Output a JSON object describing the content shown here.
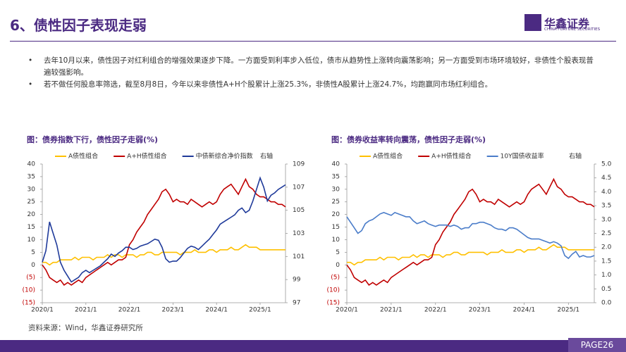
{
  "header": {
    "title": "6、债性因子表现走弱",
    "logo": "华鑫证券",
    "logo_sub": "CHINA FORTUNE SECURITIES"
  },
  "bullets": [
    "去年10月以来，债性因子对红利组合的增强效果逐步下降。一方面受到利率步入低位，债市从趋势性上涨转向震荡影响；另一方面受到市场环境较好，非债性个股表现普遍较强影响。",
    "若不做任何股息率筛选，截至8月8日，今年以来非债性A+H个股累计上涨25.3%，非债性A股累计上涨24.7%，均跑赢同市场红利组合。"
  ],
  "source": "资料来源：Wind，华鑫证券研究所",
  "footer": "PAGE26",
  "chart_data": [
    {
      "type": "line",
      "title": "图：债券指数下行，债性因子走弱(%)",
      "y2_label": "右轴",
      "x": [
        "2020/1",
        "2020/2",
        "2020/3",
        "2020/4",
        "2020/5",
        "2020/6",
        "2020/7",
        "2020/8",
        "2020/9",
        "2020/10",
        "2020/11",
        "2020/12",
        "2021/1",
        "2021/2",
        "2021/3",
        "2021/4",
        "2021/5",
        "2021/6",
        "2021/7",
        "2021/8",
        "2021/9",
        "2021/10",
        "2021/11",
        "2021/12",
        "2022/1",
        "2022/2",
        "2022/3",
        "2022/4",
        "2022/5",
        "2022/6",
        "2022/7",
        "2022/8",
        "2022/9",
        "2022/10",
        "2022/11",
        "2022/12",
        "2023/1",
        "2023/2",
        "2023/3",
        "2023/4",
        "2023/5",
        "2023/6",
        "2023/7",
        "2023/8",
        "2023/9",
        "2023/10",
        "2023/11",
        "2023/12",
        "2024/1",
        "2024/2",
        "2024/3",
        "2024/4",
        "2024/5",
        "2024/6",
        "2024/7",
        "2024/8",
        "2024/9",
        "2024/10",
        "2024/11",
        "2024/12",
        "2025/1",
        "2025/2",
        "2025/3",
        "2025/4",
        "2025/5",
        "2025/6",
        "2025/7",
        "2025/8"
      ],
      "xticks": [
        "2020/1",
        "2021/1",
        "2022/1",
        "2023/1",
        "2024/1",
        "2025/1"
      ],
      "ylim": [
        -15,
        40
      ],
      "yticks": [
        {
          "value": -15,
          "label": "(15)"
        },
        {
          "value": -10,
          "label": "(10)"
        },
        {
          "value": -5,
          "label": "(5)"
        },
        0,
        5,
        10,
        15,
        20,
        25,
        30,
        35,
        40
      ],
      "y2lim": [
        97,
        109
      ],
      "y2ticks": [
        97,
        99,
        101,
        103,
        105,
        107,
        109
      ],
      "series": [
        {
          "name": "A债性组合",
          "color": "#ffc000",
          "values": [
            1,
            1,
            0,
            1,
            1,
            2,
            2,
            2,
            2,
            3,
            2,
            3,
            3,
            3,
            2,
            3,
            3,
            3,
            4,
            3,
            4,
            4,
            3,
            4,
            4,
            4,
            3,
            4,
            4,
            5,
            5,
            4,
            4,
            5,
            5,
            5,
            5,
            5,
            4,
            5,
            5,
            5,
            6,
            5,
            5,
            5,
            6,
            6,
            5,
            6,
            6,
            6,
            7,
            6,
            6,
            7,
            8,
            7,
            7,
            7,
            6,
            6,
            6,
            6,
            6,
            6,
            6,
            6
          ]
        },
        {
          "name": "A+H债性组合",
          "color": "#c00000",
          "values": [
            0,
            -2,
            -5,
            -6,
            -7,
            -6,
            -8,
            -7,
            -8,
            -7,
            -6,
            -7,
            -5,
            -4,
            -3,
            -2,
            -1,
            0,
            1,
            0,
            1,
            2,
            2,
            3,
            8,
            10,
            13,
            15,
            17,
            20,
            22,
            24,
            26,
            29,
            30,
            28,
            25,
            26,
            25,
            25,
            24,
            26,
            25,
            24,
            23,
            24,
            25,
            24,
            25,
            28,
            30,
            31,
            32,
            30,
            28,
            31,
            34,
            31,
            30,
            28,
            27,
            27,
            26,
            25,
            25,
            24,
            24,
            23
          ]
        },
        {
          "name": "中债新综合净价指数",
          "color": "#1f3a9a",
          "axis": "y2",
          "values": [
            100.5,
            101.5,
            104,
            103,
            102,
            100.5,
            99.8,
            99.3,
            98.8,
            99,
            99.2,
            99.6,
            99.8,
            99.6,
            99.8,
            100,
            100.2,
            100.5,
            100.8,
            101.2,
            101,
            101.3,
            101.5,
            101.8,
            101.8,
            101.6,
            101.7,
            101.9,
            102,
            102.1,
            102.3,
            102.5,
            102.4,
            101.8,
            100.8,
            100.5,
            100.6,
            100.6,
            100.9,
            101.3,
            101.7,
            101.9,
            101.8,
            101.6,
            101.9,
            102.2,
            102.5,
            102.9,
            103.3,
            103.8,
            104,
            104.2,
            104.4,
            104.6,
            105,
            105.2,
            104.8,
            105,
            105.8,
            106.8,
            107.8,
            107,
            105.8,
            106.3,
            106.5,
            106.8,
            107,
            107.2
          ]
        }
      ]
    },
    {
      "type": "line",
      "title": "图：债券收益率转向震荡，债性因子走弱(%)",
      "y2_label": "右轴",
      "x": [
        "2020/1",
        "2020/2",
        "2020/3",
        "2020/4",
        "2020/5",
        "2020/6",
        "2020/7",
        "2020/8",
        "2020/9",
        "2020/10",
        "2020/11",
        "2020/12",
        "2021/1",
        "2021/2",
        "2021/3",
        "2021/4",
        "2021/5",
        "2021/6",
        "2021/7",
        "2021/8",
        "2021/9",
        "2021/10",
        "2021/11",
        "2021/12",
        "2022/1",
        "2022/2",
        "2022/3",
        "2022/4",
        "2022/5",
        "2022/6",
        "2022/7",
        "2022/8",
        "2022/9",
        "2022/10",
        "2022/11",
        "2022/12",
        "2023/1",
        "2023/2",
        "2023/3",
        "2023/4",
        "2023/5",
        "2023/6",
        "2023/7",
        "2023/8",
        "2023/9",
        "2023/10",
        "2023/11",
        "2023/12",
        "2024/1",
        "2024/2",
        "2024/3",
        "2024/4",
        "2024/5",
        "2024/6",
        "2024/7",
        "2024/8",
        "2024/9",
        "2024/10",
        "2024/11",
        "2024/12",
        "2025/1",
        "2025/2",
        "2025/3",
        "2025/4",
        "2025/5",
        "2025/6",
        "2025/7",
        "2025/8"
      ],
      "xticks": [
        "2020/1",
        "2021/1",
        "2022/1",
        "2023/1",
        "2024/1",
        "2025/1"
      ],
      "ylim": [
        -15,
        40
      ],
      "yticks": [
        {
          "value": -15,
          "label": "(15)"
        },
        {
          "value": -10,
          "label": "(10)"
        },
        {
          "value": -5,
          "label": "(5)"
        },
        0,
        5,
        10,
        15,
        20,
        25,
        30,
        35,
        40
      ],
      "y2lim": [
        0,
        5
      ],
      "y2ticks": [
        {
          "value": 0,
          "label": "0.0"
        },
        0.5,
        {
          "value": 1,
          "label": "1.0"
        },
        1.5,
        {
          "value": 2,
          "label": "2.0"
        },
        2.5,
        {
          "value": 3,
          "label": "3.0"
        },
        3.5,
        {
          "value": 4,
          "label": "4.0"
        },
        4.5,
        {
          "value": 5,
          "label": "5.0"
        }
      ],
      "series": [
        {
          "name": "A债性组合",
          "color": "#ffc000",
          "values": [
            1,
            1,
            0,
            1,
            1,
            2,
            2,
            2,
            2,
            3,
            2,
            3,
            3,
            3,
            2,
            3,
            3,
            3,
            4,
            3,
            4,
            4,
            3,
            4,
            4,
            4,
            3,
            4,
            4,
            5,
            5,
            4,
            4,
            5,
            5,
            5,
            5,
            5,
            4,
            5,
            5,
            5,
            6,
            5,
            5,
            5,
            6,
            6,
            5,
            6,
            6,
            6,
            7,
            6,
            6,
            7,
            8,
            7,
            7,
            7,
            6,
            6,
            6,
            6,
            6,
            6,
            6,
            6
          ]
        },
        {
          "name": "A+H债性组合",
          "color": "#c00000",
          "values": [
            0,
            -2,
            -5,
            -6,
            -7,
            -6,
            -8,
            -7,
            -8,
            -7,
            -6,
            -7,
            -5,
            -4,
            -3,
            -2,
            -1,
            0,
            1,
            0,
            1,
            2,
            2,
            3,
            8,
            10,
            13,
            15,
            17,
            20,
            22,
            24,
            26,
            29,
            30,
            28,
            25,
            26,
            25,
            25,
            24,
            26,
            25,
            24,
            23,
            24,
            25,
            24,
            25,
            28,
            30,
            31,
            32,
            30,
            28,
            31,
            34,
            31,
            30,
            28,
            27,
            27,
            26,
            25,
            25,
            24,
            24,
            23
          ]
        },
        {
          "name": "10Y国债收益率",
          "color": "#4a7cc9",
          "axis": "y2",
          "values": [
            3.1,
            2.9,
            2.7,
            2.5,
            2.6,
            2.85,
            2.95,
            3.0,
            3.1,
            3.2,
            3.25,
            3.2,
            3.15,
            3.25,
            3.2,
            3.15,
            3.1,
            3.1,
            2.95,
            2.85,
            2.9,
            2.95,
            2.85,
            2.8,
            2.75,
            2.8,
            2.8,
            2.8,
            2.75,
            2.8,
            2.75,
            2.65,
            2.7,
            2.7,
            2.85,
            2.85,
            2.9,
            2.9,
            2.85,
            2.8,
            2.7,
            2.65,
            2.65,
            2.6,
            2.7,
            2.7,
            2.65,
            2.55,
            2.45,
            2.35,
            2.3,
            2.3,
            2.3,
            2.25,
            2.2,
            2.15,
            2.2,
            2.15,
            2.05,
            1.7,
            1.6,
            1.75,
            1.85,
            1.65,
            1.7,
            1.65,
            1.65,
            1.7
          ]
        }
      ]
    }
  ]
}
